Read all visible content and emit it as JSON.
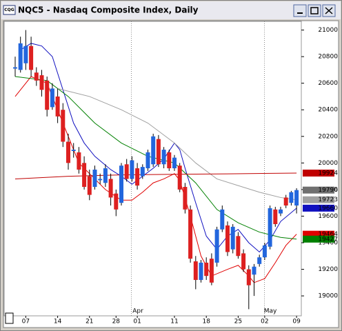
{
  "window": {
    "icon_text": "CQG"
  },
  "chart_data": {
    "type": "candlestick",
    "title": "NQC5 - Nasdaq Composite Index, Daily",
    "month_labels": [
      "Apr",
      "May"
    ],
    "categories": [
      null,
      null,
      "07",
      null,
      null,
      null,
      null,
      null,
      "14",
      null,
      null,
      null,
      null,
      null,
      "21",
      null,
      null,
      null,
      null,
      "28",
      null,
      null,
      null,
      "01",
      null,
      null,
      null,
      null,
      null,
      null,
      "11",
      null,
      null,
      null,
      null,
      null,
      "18",
      null,
      null,
      null,
      null,
      null,
      "25",
      null,
      null,
      null,
      null,
      "02",
      null,
      null,
      null,
      null,
      null,
      "09"
    ],
    "open": [
      20710,
      20700,
      20750,
      20880,
      20680,
      20660,
      20620,
      20420,
      20500,
      20400,
      20160,
      20090,
      20080,
      20000,
      19900,
      19820,
      19870,
      19850,
      19880,
      19770,
      19700,
      19990,
      19880,
      19960,
      19900,
      19960,
      19990,
      20180,
      19990,
      20080,
      19960,
      19980,
      19820,
      19650,
      19260,
      19120,
      19250,
      19280,
      19250,
      19500,
      19530,
      19350,
      19450,
      19320,
      19200,
      19160,
      19240,
      19290,
      19370,
      19650,
      19620,
      19740,
      19700,
      19680
    ],
    "high": [
      20800,
      20950,
      21000,
      20950,
      20720,
      20700,
      20650,
      20600,
      20560,
      20450,
      20220,
      20150,
      20120,
      20050,
      19950,
      19980,
      19920,
      19990,
      19920,
      19800,
      20000,
      20030,
      20050,
      20000,
      19990,
      20100,
      20220,
      20210,
      20120,
      20100,
      20060,
      20000,
      19850,
      19680,
      19300,
      19270,
      19290,
      19320,
      19520,
      19680,
      19560,
      19540,
      19480,
      19350,
      19230,
      19240,
      19310,
      19400,
      19680,
      19670,
      19670,
      19760,
      19790,
      19810
    ],
    "low": [
      20650,
      20680,
      20700,
      20650,
      20580,
      20500,
      20350,
      20400,
      20300,
      20120,
      19950,
      20040,
      19920,
      19800,
      19720,
      19800,
      19840,
      19820,
      19680,
      19600,
      19680,
      19860,
      19860,
      19800,
      19880,
      19940,
      19970,
      19970,
      19960,
      19940,
      19940,
      19780,
      19620,
      19250,
      19050,
      19100,
      19120,
      19080,
      19220,
      19480,
      19300,
      19320,
      19280,
      19180,
      18900,
      19000,
      19220,
      19270,
      19350,
      19520,
      19600,
      19660,
      19680,
      19620
    ],
    "close": [
      20720,
      20900,
      20880,
      20700,
      20620,
      20550,
      20400,
      20560,
      20350,
      20160,
      20000,
      20100,
      19950,
      19820,
      19760,
      19950,
      19880,
      19960,
      19740,
      19650,
      19980,
      19880,
      20020,
      19830,
      19970,
      20080,
      20200,
      19990,
      20100,
      19960,
      20040,
      19800,
      19650,
      19280,
      19120,
      19250,
      19150,
      19100,
      19500,
      19650,
      19330,
      19520,
      19300,
      19200,
      19080,
      19220,
      19290,
      19380,
      19660,
      19540,
      19650,
      19680,
      19780,
      19796
    ],
    "up_color": "#2266dd",
    "down_color": "#dd2020",
    "doji_color": "#000000",
    "close_label_color": "#707070",
    "series": [
      {
        "color": "#1010c0",
        "x": [
          1,
          3,
          5,
          7,
          9,
          11,
          13,
          15,
          18,
          20,
          22,
          24,
          26,
          28,
          30,
          31,
          32,
          34,
          36,
          38,
          40,
          42,
          44,
          46,
          48,
          50,
          53
        ],
        "values": [
          20850,
          20900,
          20880,
          20800,
          20550,
          20300,
          20150,
          20050,
          19950,
          19900,
          19840,
          19900,
          19960,
          20030,
          20150,
          20100,
          19960,
          19700,
          19450,
          19350,
          19450,
          19500,
          19400,
          19330,
          19420,
          19560,
          19660
        ]
      },
      {
        "color": "#e00000",
        "x": [
          0,
          3,
          6,
          9,
          12,
          15,
          17,
          20,
          22,
          24,
          26,
          28,
          30,
          31,
          33,
          35,
          37,
          40,
          42,
          44,
          45,
          47,
          49,
          51,
          53
        ],
        "values": [
          20500,
          20650,
          20600,
          20300,
          20000,
          19880,
          19800,
          19720,
          19720,
          19780,
          19850,
          19880,
          19920,
          19870,
          19600,
          19300,
          19150,
          19200,
          19230,
          19150,
          19100,
          19130,
          19250,
          19380,
          19464
        ]
      },
      {
        "color": "#008000",
        "x": [
          0,
          6,
          10,
          15,
          20,
          25,
          30,
          34,
          38,
          42,
          46,
          50,
          53
        ],
        "values": [
          20650,
          20620,
          20500,
          20300,
          20150,
          20050,
          20000,
          19850,
          19650,
          19550,
          19480,
          19440,
          19427
        ]
      },
      {
        "color": "#a0a0a0",
        "x": [
          8,
          14,
          20,
          25,
          30,
          34,
          38,
          42,
          46,
          50,
          53
        ],
        "values": [
          20560,
          20500,
          20400,
          20300,
          20150,
          20000,
          19880,
          19830,
          19780,
          19740,
          19723
        ]
      },
      {
        "color": "#c00000",
        "x": [
          0,
          10,
          20,
          30,
          40,
          53
        ],
        "values": [
          19880,
          19900,
          19910,
          19915,
          19918,
          19924
        ]
      }
    ],
    "ylim": [
      18850,
      21060
    ],
    "yticks": [
      19000,
      19200,
      19400,
      19600,
      19800,
      20000,
      20200,
      20400,
      20600,
      20800,
      21000
    ]
  }
}
